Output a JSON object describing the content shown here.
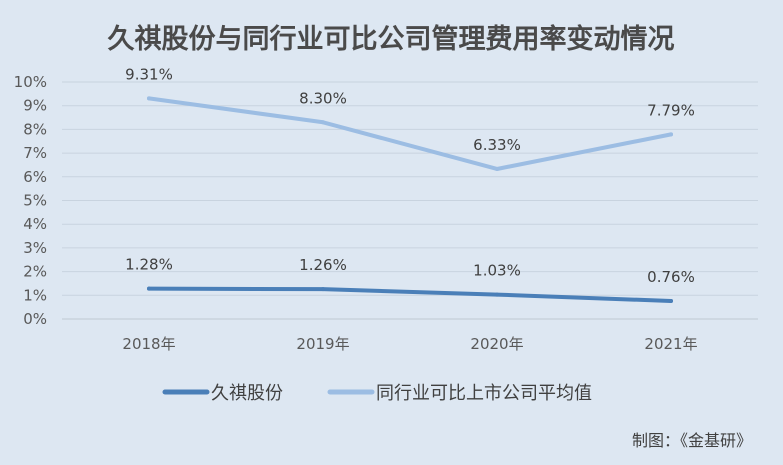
{
  "chart_data": {
    "type": "line",
    "title": "久祺股份与同行业可比公司管理费用率变动情况",
    "categories": [
      "2018年",
      "2019年",
      "2020年",
      "2021年"
    ],
    "ylim": [
      0,
      10
    ],
    "y_ticks": [
      "0%",
      "1%",
      "2%",
      "3%",
      "4%",
      "5%",
      "6%",
      "7%",
      "8%",
      "9%",
      "10%"
    ],
    "grid": true,
    "legend_position": "bottom",
    "series": [
      {
        "name": "久祺股份",
        "values": [
          1.28,
          1.26,
          1.03,
          0.76
        ],
        "labels": [
          "1.28%",
          "1.26%",
          "1.03%",
          "0.76%"
        ],
        "color": "#4a7fb8"
      },
      {
        "name": "同行业可比上市公司平均值",
        "values": [
          9.31,
          8.3,
          6.33,
          7.79
        ],
        "labels": [
          "9.31%",
          "8.30%",
          "6.33%",
          "7.79%"
        ],
        "color": "#9cbde3"
      }
    ]
  },
  "credit": "制图：《金基研》"
}
